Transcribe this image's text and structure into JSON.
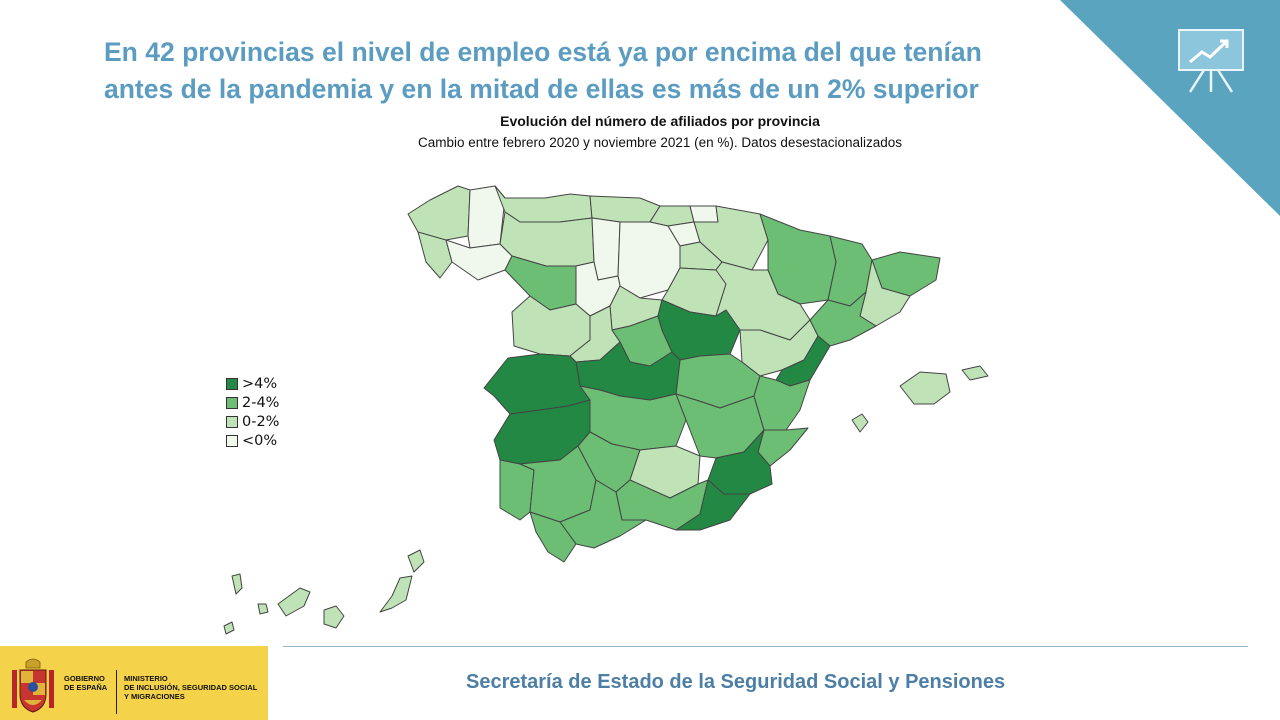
{
  "slide": {
    "headline_line1": "En 42 provincias el nivel de empleo está ya por encima del que tenían",
    "headline_line2": "antes de la pandemia y en la mitad de ellas es más de un 2% superior",
    "corner_icon": "presentation-chart-icon",
    "accent_color": "#5ba4c0",
    "headline_color": "#5b9cc0"
  },
  "map": {
    "title": "Evolución del número de afiliados por provincia",
    "subtitle": "Cambio entre febrero 2020 y noviembre 2021 (en %). Datos desestacionalizados",
    "legend": [
      {
        "label": ">4%",
        "color": "#228844"
      },
      {
        "label": "2-4%",
        "color": "#6cbe74"
      },
      {
        "label": "0-2%",
        "color": "#bfe3b6"
      },
      {
        "label": "<0%",
        "color": "#f0f7ec"
      }
    ]
  },
  "footer": {
    "text": "Secretaría de Estado de la Seguridad Social y Pensiones",
    "gov_line1": "GOBIERNO",
    "gov_line2": "DE ESPAÑA",
    "ministry_line1": "MINISTERIO",
    "ministry_line2": "DE INCLUSIÓN, SEGURIDAD SOCIAL",
    "ministry_line3": "Y MIGRACIONES",
    "logo": "coat-of-arms-icon"
  }
}
